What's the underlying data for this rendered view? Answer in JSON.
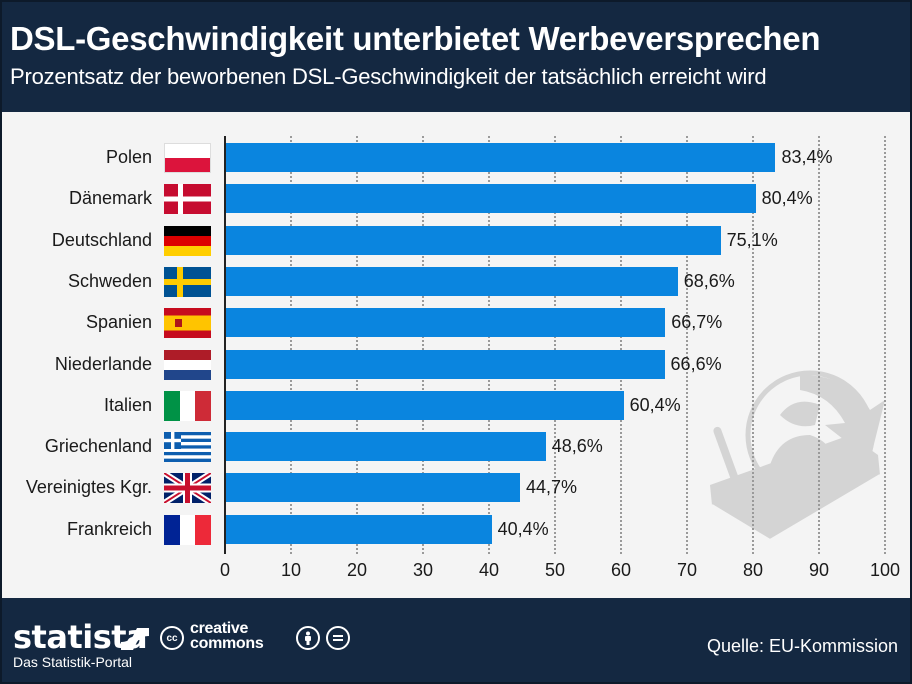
{
  "header": {
    "title": "DSL-Geschwindigkeit unterbietet Werbeversprechen",
    "subtitle": "Prozentsatz der beworbenen DSL-Geschwindigkeit der tatsächlich erreicht wird"
  },
  "footer": {
    "brand": "statista",
    "tagline": "Das Statistik-Portal",
    "license_line1": "creative",
    "license_line2": "commons",
    "cc_badge": "cc",
    "by_icon": "attribution-icon",
    "nd_icon": "no-derivatives-icon",
    "source": "Quelle: EU-Kommission"
  },
  "colors": {
    "header_bg": "#142841",
    "bar": "#0a85df",
    "plot_bg": "#f4f4f4",
    "watermark": "#d4d4d4"
  },
  "chart_data": {
    "type": "bar",
    "orientation": "horizontal",
    "title": "DSL-Geschwindigkeit unterbietet Werbeversprechen",
    "subtitle": "Prozentsatz der beworbenen DSL-Geschwindigkeit der tatsächlich erreicht wird",
    "xlabel": "",
    "ylabel": "",
    "xlim": [
      0,
      100
    ],
    "x_ticks": [
      0,
      10,
      20,
      30,
      40,
      50,
      60,
      70,
      80,
      90,
      100
    ],
    "grid": "vertical dotted",
    "legend": "none",
    "categories": [
      "Polen",
      "Dänemark",
      "Deutschland",
      "Schweden",
      "Spanien",
      "Niederlande",
      "Italien",
      "Griechenland",
      "Vereinigtes Kgr.",
      "Frankreich"
    ],
    "flags": [
      "pl",
      "dk",
      "de",
      "se",
      "es",
      "nl",
      "it",
      "gr",
      "gb",
      "fr"
    ],
    "values": [
      83.4,
      80.4,
      75.1,
      68.6,
      66.7,
      66.6,
      60.4,
      48.6,
      44.7,
      40.4
    ],
    "value_labels": [
      "83,4%",
      "80,4%",
      "75,1%",
      "68,6%",
      "66,7%",
      "66,6%",
      "60,4%",
      "48,6%",
      "44,7%",
      "40,4%"
    ],
    "source": "EU-Kommission"
  }
}
